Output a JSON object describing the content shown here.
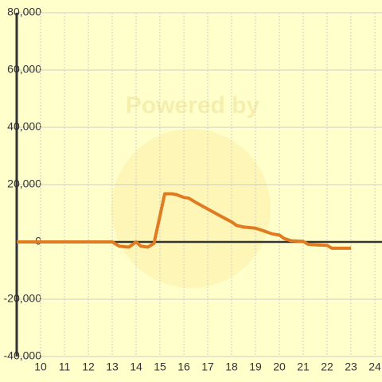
{
  "chart_data": {
    "type": "line",
    "watermark": "Powered by",
    "x": [
      9.0,
      13.0,
      13.3,
      13.7,
      14.0,
      14.2,
      14.5,
      14.75,
      15.2,
      15.5,
      15.7,
      16.0,
      16.2,
      16.5,
      17.0,
      17.5,
      18.0,
      18.2,
      18.5,
      19.0,
      19.3,
      19.7,
      20.0,
      20.2,
      20.5,
      21.0,
      21.2,
      21.5,
      22.0,
      22.2,
      23.0
    ],
    "series": [
      {
        "color": "#e07b22",
        "values": [
          0,
          0,
          -1500,
          -1800,
          0,
          -1500,
          -1800,
          -500,
          16800,
          16800,
          16500,
          15500,
          15300,
          13800,
          11500,
          9200,
          7000,
          5800,
          5200,
          4800,
          4000,
          2800,
          2400,
          1200,
          400,
          200,
          -800,
          -1000,
          -1200,
          -2200,
          -2200
        ]
      }
    ],
    "xlim": [
      9,
      24.3
    ],
    "xticks": [
      10,
      11,
      12,
      13,
      14,
      15,
      16,
      17,
      18,
      19,
      20,
      21,
      22,
      23,
      24
    ],
    "ylim": [
      -40000,
      80000
    ],
    "yticks": [
      {
        "value": -40000,
        "label": "-40,000"
      },
      {
        "value": -20000,
        "label": "-20,000"
      },
      0,
      {
        "value": 20000,
        "label": "20,000"
      },
      {
        "value": 40000,
        "label": "40,000"
      },
      {
        "value": 60000,
        "label": "60,000"
      },
      {
        "value": 80000,
        "label": "80,000"
      }
    ],
    "grid": true
  }
}
